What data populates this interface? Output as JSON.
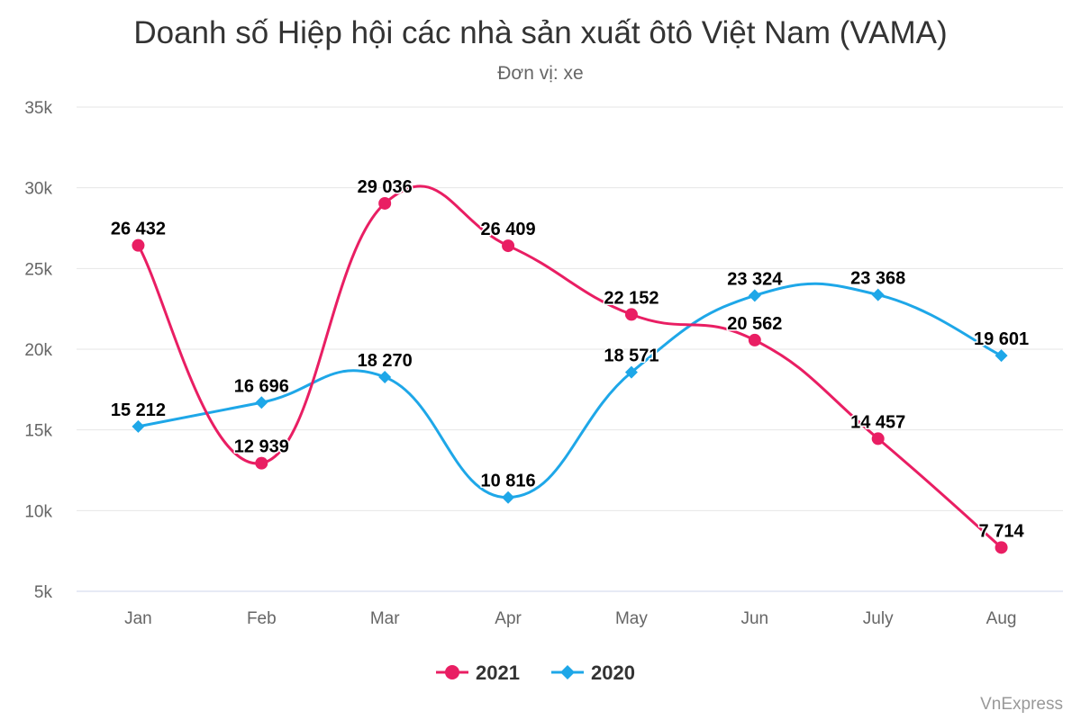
{
  "chart_data": {
    "type": "line",
    "title": "Doanh số Hiệp hội các nhà sản xuất ôtô Việt Nam (VAMA)",
    "subtitle": "Đơn vị: xe",
    "categories": [
      "Jan",
      "Feb",
      "Mar",
      "Apr",
      "May",
      "Jun",
      "July",
      "Aug"
    ],
    "ylim": [
      5000,
      35000
    ],
    "yticks": [
      {
        "value": 5000,
        "label": "5k"
      },
      {
        "value": 10000,
        "label": "10k"
      },
      {
        "value": 15000,
        "label": "15k"
      },
      {
        "value": 20000,
        "label": "20k"
      },
      {
        "value": 25000,
        "label": "25k"
      },
      {
        "value": 30000,
        "label": "30k"
      },
      {
        "value": 35000,
        "label": "35k"
      }
    ],
    "grid": true,
    "legend_position": "bottom-center",
    "smooth": true,
    "series": [
      {
        "name": "2021",
        "color": "#e91e63",
        "marker": "circle",
        "values": [
          26432,
          12939,
          29036,
          26409,
          22152,
          20562,
          14457,
          7714
        ],
        "labels": [
          "26 432",
          "12 939",
          "29 036",
          "26 409",
          "22 152",
          "20 562",
          "14 457",
          "7 714"
        ]
      },
      {
        "name": "2020",
        "color": "#1ea7e8",
        "marker": "diamond",
        "values": [
          15212,
          16696,
          18270,
          10816,
          18571,
          23324,
          23368,
          19601
        ],
        "labels": [
          "15 212",
          "16 696",
          "18 270",
          "10 816",
          "18 571",
          "23 324",
          "23 368",
          "19 601"
        ]
      }
    ],
    "credit": "VnExpress"
  }
}
